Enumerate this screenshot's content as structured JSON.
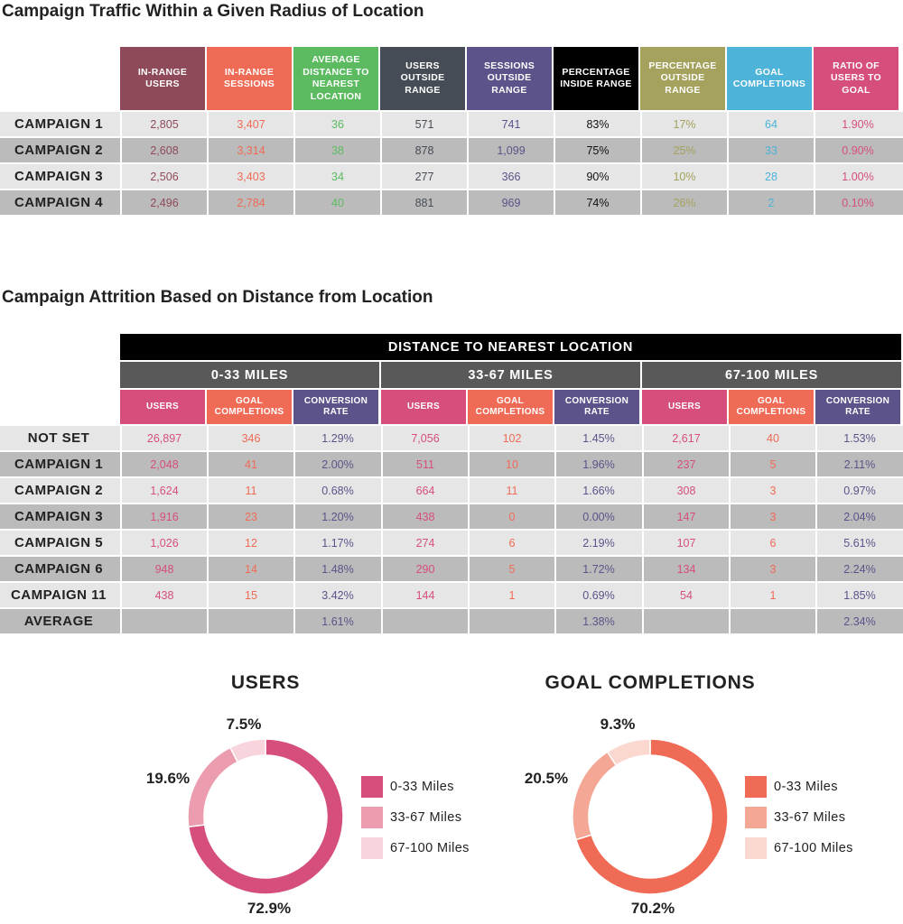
{
  "colors": {
    "in_range_users": "#8e4a58",
    "in_range_sessions": "#ef6b56",
    "avg_distance": "#5cbb61",
    "users_outside": "#464c55",
    "sessions_outside": "#5b5389",
    "pct_inside": "#000000",
    "pct_outside": "#a4a25d",
    "goal_completions": "#4db3d8",
    "ratio": "#d64f7c",
    "row_light": "#e6e6e6",
    "row_dark": "#bbbbbb",
    "users_pink": "#d64f7c",
    "goals_orange": "#ef6b56",
    "conv_purple": "#5b5389"
  },
  "section1": {
    "title": "Campaign Traffic Within a Given Radius of Location",
    "headers": [
      "IN-RANGE USERS",
      "IN-RANGE SESSIONS",
      "AVERAGE DISTANCE TO NEAREST LOCATION",
      "USERS OUTSIDE RANGE",
      "SESSIONS OUTSIDE RANGE",
      "PERCENTAGE INSIDE RANGE",
      "PERCENTAGE OUTSIDE RANGE",
      "GOAL COMPLETIONS",
      "RATIO OF USERS TO GOAL"
    ],
    "rows": [
      {
        "label": "CAMPAIGN 1",
        "cells": [
          "2,805",
          "3,407",
          "36",
          "571",
          "741",
          "83%",
          "17%",
          "64",
          "1.90%"
        ]
      },
      {
        "label": "CAMPAIGN 2",
        "cells": [
          "2,608",
          "3,314",
          "38",
          "878",
          "1,099",
          "75%",
          "25%",
          "33",
          "0.90%"
        ]
      },
      {
        "label": "CAMPAIGN 3",
        "cells": [
          "2,506",
          "3,403",
          "34",
          "277",
          "366",
          "90%",
          "10%",
          "28",
          "1.00%"
        ]
      },
      {
        "label": "CAMPAIGN 4",
        "cells": [
          "2,496",
          "2,784",
          "40",
          "881",
          "969",
          "74%",
          "26%",
          "2",
          "0.10%"
        ]
      }
    ]
  },
  "section2": {
    "title": "Campaign Attrition Based on Distance from Location",
    "top_header": "DISTANCE TO NEAREST LOCATION",
    "groups": [
      "0-33 MILES",
      "33-67 MILES",
      "67-100 MILES"
    ],
    "sub_headers": [
      "USERS",
      "GOAL COMPLETIONS",
      "CONVERSION RATE"
    ],
    "rows": [
      {
        "label": "NOT SET",
        "cells": [
          "26,897",
          "346",
          "1.29%",
          "7,056",
          "102",
          "1.45%",
          "2,617",
          "40",
          "1.53%"
        ]
      },
      {
        "label": "CAMPAIGN 1",
        "cells": [
          "2,048",
          "41",
          "2.00%",
          "511",
          "10",
          "1.96%",
          "237",
          "5",
          "2.11%"
        ]
      },
      {
        "label": "CAMPAIGN 2",
        "cells": [
          "1,624",
          "11",
          "0.68%",
          "664",
          "11",
          "1.66%",
          "308",
          "3",
          "0.97%"
        ]
      },
      {
        "label": "CAMPAIGN 3",
        "cells": [
          "1,916",
          "23",
          "1.20%",
          "438",
          "0",
          "0.00%",
          "147",
          "3",
          "2.04%"
        ]
      },
      {
        "label": "CAMPAIGN 5",
        "cells": [
          "1,026",
          "12",
          "1.17%",
          "274",
          "6",
          "2.19%",
          "107",
          "6",
          "5.61%"
        ]
      },
      {
        "label": "CAMPAIGN 6",
        "cells": [
          "948",
          "14",
          "1.48%",
          "290",
          "5",
          "1.72%",
          "134",
          "3",
          "2.24%"
        ]
      },
      {
        "label": "CAMPAIGN 11",
        "cells": [
          "438",
          "15",
          "3.42%",
          "144",
          "1",
          "0.69%",
          "54",
          "1",
          "1.85%"
        ]
      },
      {
        "label": "AVERAGE",
        "cells": [
          "",
          "",
          "1.61%",
          "",
          "",
          "1.38%",
          "",
          "",
          "2.34%"
        ]
      }
    ]
  },
  "chart_data": [
    {
      "type": "pie",
      "title": "USERS",
      "categories": [
        "0-33 Miles",
        "33-67 Miles",
        "67-100 Miles"
      ],
      "values": [
        72.9,
        19.6,
        7.5
      ],
      "labels": [
        "72.9%",
        "19.6%",
        "7.5%"
      ],
      "colors": [
        "#d64f7c",
        "#eb9daf",
        "#f8d5dc"
      ],
      "legend": "right"
    },
    {
      "type": "pie",
      "title": "GOAL COMPLETIONS",
      "categories": [
        "0-33 Miles",
        "33-67 Miles",
        "67-100 Miles"
      ],
      "values": [
        70.2,
        20.5,
        9.3
      ],
      "labels": [
        "70.2%",
        "20.5%",
        "9.3%"
      ],
      "colors": [
        "#ef6b56",
        "#f5a795",
        "#fad8d0"
      ],
      "legend": "right"
    }
  ]
}
